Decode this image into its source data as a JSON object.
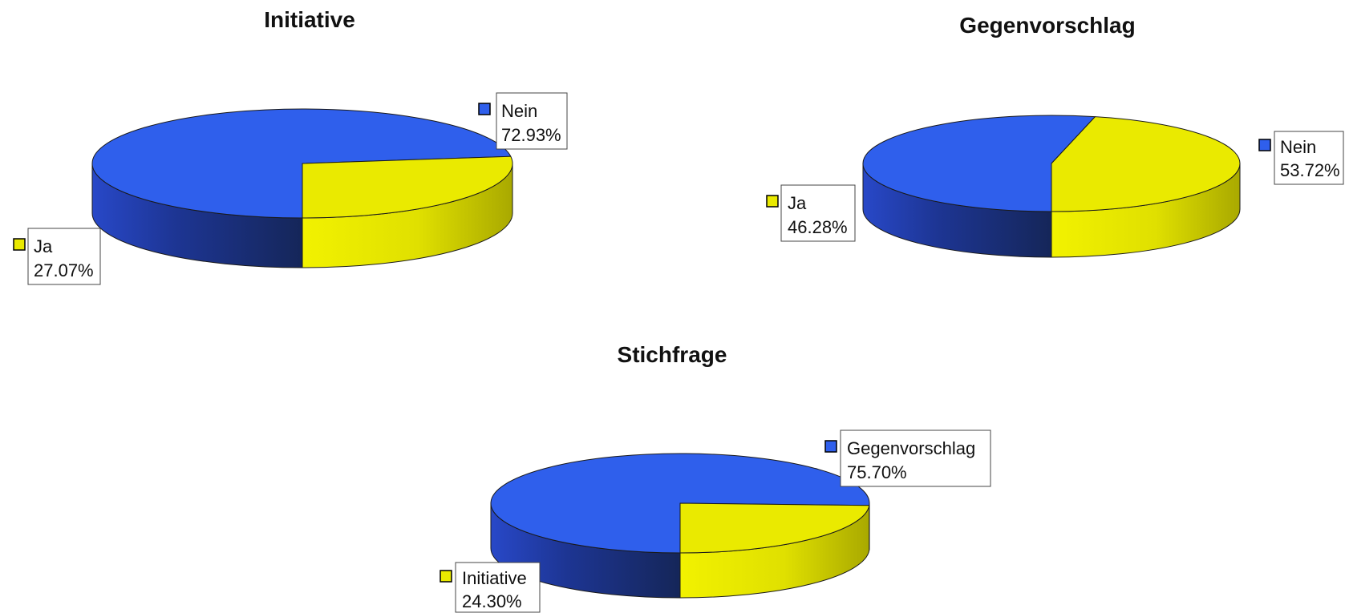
{
  "colors": {
    "yes_top": "#eaea00",
    "no_top": "#2f5fec"
  },
  "chart_data": [
    {
      "type": "pie",
      "title": "Initiative",
      "labels": [
        "Nein",
        "Ja"
      ],
      "values": [
        72.93,
        27.07
      ],
      "value_labels": [
        "72.93%",
        "27.07%"
      ],
      "colors": [
        "#2f5fec",
        "#eaea00"
      ]
    },
    {
      "type": "pie",
      "title": "Gegenvorschlag",
      "labels": [
        "Nein",
        "Ja"
      ],
      "values": [
        53.72,
        46.28
      ],
      "value_labels": [
        "53.72%",
        "46.28%"
      ],
      "colors": [
        "#2f5fec",
        "#eaea00"
      ]
    },
    {
      "type": "pie",
      "title": "Stichfrage",
      "labels": [
        "Gegenvorschlag",
        "Initiative"
      ],
      "values": [
        75.7,
        24.3
      ],
      "value_labels": [
        "75.70%",
        "24.30%"
      ],
      "colors": [
        "#2f5fec",
        "#eaea00"
      ]
    }
  ]
}
